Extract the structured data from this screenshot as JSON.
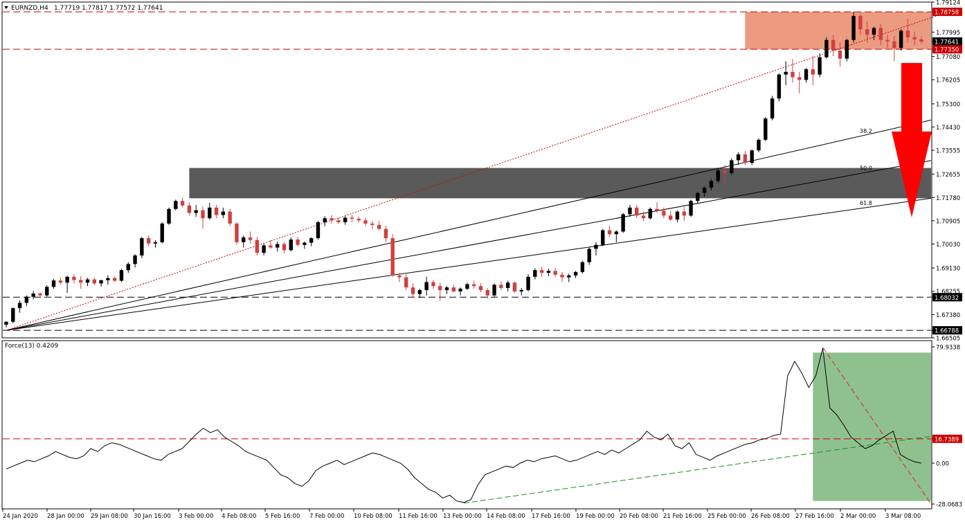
{
  "chart_data": [
    {
      "type": "candlestick",
      "title": "EURNZD,H4",
      "ohlc_header": "1.77719 1.77817 1.77572 1.77641",
      "ylim": [
        1.66505,
        1.79124
      ],
      "price_ticks": [
        "1.79124",
        "1.78758",
        "1.77995",
        "1.77641",
        "1.77350",
        "1.77080",
        "1.76205",
        "1.75300",
        "1.74430",
        "1.73555",
        "1.72655",
        "1.71780",
        "1.70905",
        "1.70030",
        "1.69130",
        "1.68255",
        "1.68032",
        "1.67380",
        "1.66788",
        "1.66505"
      ],
      "x_tick_labels": [
        "24 Jan 2020",
        "28 Jan 00:00",
        "29 Jan 08:00",
        "30 Jan 16:00",
        "3 Feb 00:00",
        "4 Feb 08:00",
        "5 Feb 16:00",
        "7 Feb 00:00",
        "10 Feb 08:00",
        "11 Feb 16:00",
        "13 Feb 00:00",
        "14 Feb 08:00",
        "17 Feb 16:00",
        "19 Feb 00:00",
        "20 Feb 08:00",
        "21 Feb 16:00",
        "25 Feb 00:00",
        "26 Feb 08:00",
        "27 Feb 16:00",
        "2 Mar 00:00",
        "3 Mar 08:00"
      ],
      "horizontal_levels": {
        "resistance_top": {
          "value": 1.78758,
          "label": "1.78758"
        },
        "resistance_bottom": {
          "value": 1.7735,
          "label": "1.77350"
        },
        "current_price": {
          "value": 1.77641,
          "label": "1.77641"
        },
        "support_1": {
          "value": 1.68032,
          "label": "1.68032"
        },
        "support_2": {
          "value": 1.66788,
          "label": "1.66788"
        }
      },
      "zones": {
        "resistance_zone": {
          "from": 1.7735,
          "to": 1.78758,
          "color": "#e8896a"
        },
        "support_zone": {
          "from": 1.7175,
          "to": 1.7289,
          "color": "#5a5a5a"
        }
      },
      "fibonacci_fan": {
        "anchor": {
          "bar": 0,
          "price": 1.66788
        },
        "levels": [
          {
            "label": "38.2",
            "end_price": 1.7469
          },
          {
            "label": "50.0",
            "end_price": 1.7317
          },
          {
            "label": "61.8",
            "end_price": 1.7175
          }
        ]
      },
      "trend_line": {
        "from": {
          "bar": 0,
          "price": 1.66788
        },
        "to": {
          "bar": 139,
          "price": 1.78758
        },
        "color": "#cc0000"
      },
      "down_arrow_color": "#ff0000",
      "bull_color": "#000000",
      "bear_color": "#d04040",
      "candles": [
        [
          1.67,
          1.6713,
          1.669,
          1.6711
        ],
        [
          1.6711,
          1.6765,
          1.6705,
          1.6762
        ],
        [
          1.6762,
          1.6792,
          1.6745,
          1.6782
        ],
        [
          1.6782,
          1.681,
          1.677,
          1.6805
        ],
        [
          1.6805,
          1.6826,
          1.6795,
          1.6817
        ],
        [
          1.6817,
          1.6822,
          1.68,
          1.681
        ],
        [
          1.681,
          1.6848,
          1.6806,
          1.6842
        ],
        [
          1.6842,
          1.6872,
          1.6835,
          1.6866
        ],
        [
          1.6866,
          1.6878,
          1.685,
          1.6858
        ],
        [
          1.6858,
          1.6884,
          1.682,
          1.688
        ],
        [
          1.688,
          1.689,
          1.6855,
          1.6868
        ],
        [
          1.6868,
          1.6882,
          1.6835,
          1.6858
        ],
        [
          1.6858,
          1.6876,
          1.6845,
          1.687
        ],
        [
          1.687,
          1.6878,
          1.685,
          1.6855
        ],
        [
          1.6855,
          1.6869,
          1.6843,
          1.6867
        ],
        [
          1.6867,
          1.6886,
          1.685,
          1.6875
        ],
        [
          1.6875,
          1.6882,
          1.686,
          1.6865
        ],
        [
          1.6865,
          1.691,
          1.686,
          1.6905
        ],
        [
          1.6905,
          1.6935,
          1.6895,
          1.6928
        ],
        [
          1.6928,
          1.6965,
          1.6915,
          1.696
        ],
        [
          1.696,
          1.703,
          1.695,
          1.7025
        ],
        [
          1.7025,
          1.7035,
          1.6995,
          1.7005
        ],
        [
          1.7005,
          1.7018,
          1.699,
          1.701
        ],
        [
          1.701,
          1.7085,
          1.7005,
          1.708
        ],
        [
          1.708,
          1.714,
          1.7075,
          1.7135
        ],
        [
          1.7135,
          1.717,
          1.713,
          1.7165
        ],
        [
          1.7165,
          1.7178,
          1.714,
          1.7148
        ],
        [
          1.7148,
          1.716,
          1.711,
          1.712
        ],
        [
          1.712,
          1.715,
          1.7105,
          1.713
        ],
        [
          1.713,
          1.7145,
          1.706,
          1.71
        ],
        [
          1.71,
          1.7158,
          1.7095,
          1.714
        ],
        [
          1.714,
          1.715,
          1.71,
          1.7112
        ],
        [
          1.7112,
          1.714,
          1.71,
          1.7125
        ],
        [
          1.7125,
          1.7135,
          1.707,
          1.708
        ],
        [
          1.708,
          1.7085,
          1.7,
          1.701
        ],
        [
          1.701,
          1.7035,
          1.699,
          1.7028
        ],
        [
          1.7028,
          1.705,
          1.7005,
          1.7018
        ],
        [
          1.7018,
          1.703,
          1.696,
          1.697
        ],
        [
          1.697,
          1.7005,
          1.696,
          1.6998
        ],
        [
          1.6998,
          1.7018,
          1.6985,
          1.699
        ],
        [
          1.699,
          1.7012,
          1.6975,
          1.7003
        ],
        [
          1.7003,
          1.701,
          1.6968,
          1.698
        ],
        [
          1.698,
          1.7028,
          1.6975,
          1.702
        ],
        [
          1.702,
          1.703,
          1.6995,
          1.7
        ],
        [
          1.7,
          1.7012,
          1.6985,
          1.7008
        ],
        [
          1.7008,
          1.7028,
          1.6995,
          1.7025
        ],
        [
          1.7025,
          1.709,
          1.702,
          1.7085
        ],
        [
          1.7085,
          1.7108,
          1.707,
          1.71
        ],
        [
          1.71,
          1.7112,
          1.708,
          1.7092
        ],
        [
          1.7092,
          1.7102,
          1.708,
          1.7085
        ],
        [
          1.7085,
          1.7108,
          1.7075,
          1.7102
        ],
        [
          1.7102,
          1.7112,
          1.7085,
          1.7098
        ],
        [
          1.7098,
          1.7106,
          1.7085,
          1.7092
        ],
        [
          1.7092,
          1.7102,
          1.707,
          1.708
        ],
        [
          1.708,
          1.709,
          1.706,
          1.7075
        ],
        [
          1.7075,
          1.709,
          1.7055,
          1.706
        ],
        [
          1.706,
          1.7072,
          1.701,
          1.7025
        ],
        [
          1.7025,
          1.704,
          1.688,
          1.6885
        ],
        [
          1.6885,
          1.6895,
          1.686,
          1.6878
        ],
        [
          1.6878,
          1.689,
          1.683,
          1.684
        ],
        [
          1.684,
          1.6855,
          1.68,
          1.6815
        ],
        [
          1.6815,
          1.6835,
          1.68,
          1.683
        ],
        [
          1.683,
          1.688,
          1.681,
          1.686
        ],
        [
          1.686,
          1.6868,
          1.6835,
          1.6845
        ],
        [
          1.6845,
          1.6858,
          1.679,
          1.683
        ],
        [
          1.683,
          1.6845,
          1.6815,
          1.684
        ],
        [
          1.684,
          1.685,
          1.682,
          1.6825
        ],
        [
          1.6825,
          1.684,
          1.681,
          1.6835
        ],
        [
          1.6835,
          1.6858,
          1.683,
          1.6852
        ],
        [
          1.6852,
          1.6865,
          1.6835,
          1.6845
        ],
        [
          1.6845,
          1.6856,
          1.6822,
          1.683
        ],
        [
          1.683,
          1.6838,
          1.6798,
          1.681
        ],
        [
          1.681,
          1.6855,
          1.6805,
          1.685
        ],
        [
          1.685,
          1.6862,
          1.683,
          1.6838
        ],
        [
          1.6838,
          1.6865,
          1.6825,
          1.6858
        ],
        [
          1.6858,
          1.6862,
          1.682,
          1.6825
        ],
        [
          1.6825,
          1.6838,
          1.681,
          1.683
        ],
        [
          1.683,
          1.689,
          1.6825,
          1.688
        ],
        [
          1.688,
          1.6912,
          1.687,
          1.6905
        ],
        [
          1.6905,
          1.6918,
          1.688,
          1.6895
        ],
        [
          1.6895,
          1.691,
          1.6882,
          1.6902
        ],
        [
          1.6902,
          1.6912,
          1.688,
          1.6888
        ],
        [
          1.6888,
          1.6898,
          1.686,
          1.6878
        ],
        [
          1.6878,
          1.6892,
          1.686,
          1.6885
        ],
        [
          1.6885,
          1.6902,
          1.6875,
          1.6898
        ],
        [
          1.6898,
          1.694,
          1.6892,
          1.6935
        ],
        [
          1.6935,
          1.699,
          1.6925,
          1.6985
        ],
        [
          1.6985,
          1.701,
          1.696,
          1.7
        ],
        [
          1.7,
          1.706,
          1.6995,
          1.7055
        ],
        [
          1.7055,
          1.7072,
          1.703,
          1.704
        ],
        [
          1.704,
          1.7055,
          1.701,
          1.705
        ],
        [
          1.705,
          1.712,
          1.7045,
          1.7115
        ],
        [
          1.7115,
          1.715,
          1.7105,
          1.714
        ],
        [
          1.714,
          1.715,
          1.71,
          1.711
        ],
        [
          1.711,
          1.7125,
          1.709,
          1.71
        ],
        [
          1.71,
          1.714,
          1.7095,
          1.7135
        ],
        [
          1.7135,
          1.716,
          1.712,
          1.7128
        ],
        [
          1.7128,
          1.714,
          1.71,
          1.711
        ],
        [
          1.711,
          1.7128,
          1.709,
          1.7095
        ],
        [
          1.7095,
          1.713,
          1.7085,
          1.7125
        ],
        [
          1.7125,
          1.7142,
          1.709,
          1.711
        ],
        [
          1.711,
          1.717,
          1.7105,
          1.7165
        ],
        [
          1.7165,
          1.72,
          1.7155,
          1.7195
        ],
        [
          1.7195,
          1.722,
          1.718,
          1.7215
        ],
        [
          1.7215,
          1.7248,
          1.7205,
          1.724
        ],
        [
          1.724,
          1.729,
          1.7232,
          1.728
        ],
        [
          1.728,
          1.73,
          1.7225,
          1.727
        ],
        [
          1.727,
          1.7325,
          1.7262,
          1.7318
        ],
        [
          1.7318,
          1.7348,
          1.73,
          1.734
        ],
        [
          1.734,
          1.7352,
          1.73,
          1.7308
        ],
        [
          1.7308,
          1.7358,
          1.73,
          1.7355
        ],
        [
          1.7355,
          1.74,
          1.7348,
          1.7395
        ],
        [
          1.7395,
          1.748,
          1.739,
          1.7475
        ],
        [
          1.7475,
          1.756,
          1.7468,
          1.755
        ],
        [
          1.755,
          1.7645,
          1.754,
          1.764
        ],
        [
          1.764,
          1.769,
          1.76,
          1.765
        ],
        [
          1.765,
          1.7698,
          1.761,
          1.763
        ],
        [
          1.763,
          1.765,
          1.757,
          1.762
        ],
        [
          1.762,
          1.7665,
          1.761,
          1.766
        ],
        [
          1.766,
          1.771,
          1.76,
          1.764
        ],
        [
          1.764,
          1.772,
          1.763,
          1.7705
        ],
        [
          1.7705,
          1.778,
          1.77,
          1.777
        ],
        [
          1.777,
          1.779,
          1.771,
          1.773
        ],
        [
          1.773,
          1.7762,
          1.767,
          1.77
        ],
        [
          1.77,
          1.7775,
          1.769,
          1.777
        ],
        [
          1.777,
          1.7876,
          1.776,
          1.786
        ],
        [
          1.786,
          1.787,
          1.779,
          1.781
        ],
        [
          1.781,
          1.784,
          1.776,
          1.779
        ],
        [
          1.779,
          1.782,
          1.777,
          1.7815
        ],
        [
          1.7815,
          1.783,
          1.775,
          1.777
        ],
        [
          1.777,
          1.779,
          1.774,
          1.7765
        ],
        [
          1.7765,
          1.7785,
          1.769,
          1.774
        ],
        [
          1.774,
          1.781,
          1.773,
          1.7805
        ],
        [
          1.7805,
          1.785,
          1.776,
          1.778
        ],
        [
          1.778,
          1.78,
          1.775,
          1.7772
        ],
        [
          1.7772,
          1.7782,
          1.7757,
          1.7764
        ]
      ]
    },
    {
      "type": "line",
      "title": "Force(13) 0.4209",
      "ylim": [
        -28.0683,
        79.9338
      ],
      "y_tick_labels": [
        "79.9338",
        "16.7389",
        "0.00",
        "-28.0683"
      ],
      "series": [
        {
          "values": [
            -4,
            -2,
            0,
            2,
            1,
            3,
            5,
            8,
            6,
            4,
            3,
            5,
            10,
            8,
            12,
            14,
            13,
            11,
            9,
            7,
            5,
            3,
            2,
            6,
            8,
            10,
            15,
            20,
            24,
            21,
            23,
            18,
            15,
            12,
            8,
            6,
            4,
            2,
            -3,
            -8,
            -10,
            -14,
            -16,
            -12,
            -5,
            -2,
            0,
            2,
            -1,
            1,
            3,
            5,
            7,
            6,
            4,
            2,
            0,
            -4,
            -10,
            -14,
            -18,
            -20,
            -24,
            -22,
            -26,
            -27,
            -25,
            -15,
            -8,
            -6,
            -4,
            -2,
            -3,
            0,
            2,
            1,
            3,
            4,
            5,
            3,
            1,
            2,
            4,
            6,
            8,
            6,
            9,
            7,
            10,
            13,
            16,
            22,
            18,
            16,
            20,
            12,
            10,
            14,
            6,
            4,
            2,
            5,
            7,
            9,
            11,
            13,
            14,
            16,
            17,
            19,
            20,
            60,
            70,
            62,
            52,
            60,
            79,
            38,
            33,
            26,
            18,
            14,
            10,
            12,
            16,
            19,
            22,
            6,
            3,
            1,
            0
          ]
        }
      ],
      "levels": {
        "resistance": {
          "value": 16.7389,
          "label": "16.7389"
        }
      },
      "ascending_support_line": {
        "from_value": -27.5,
        "to_value": 18.5,
        "color": "#1a8f1a"
      },
      "descending_line": {
        "from_value": 79.5,
        "to_value": -28.0,
        "color": "#e02020"
      },
      "highlight_box": {
        "from": -26.0,
        "to": 76.0,
        "color": "#8fc18f"
      }
    }
  ]
}
